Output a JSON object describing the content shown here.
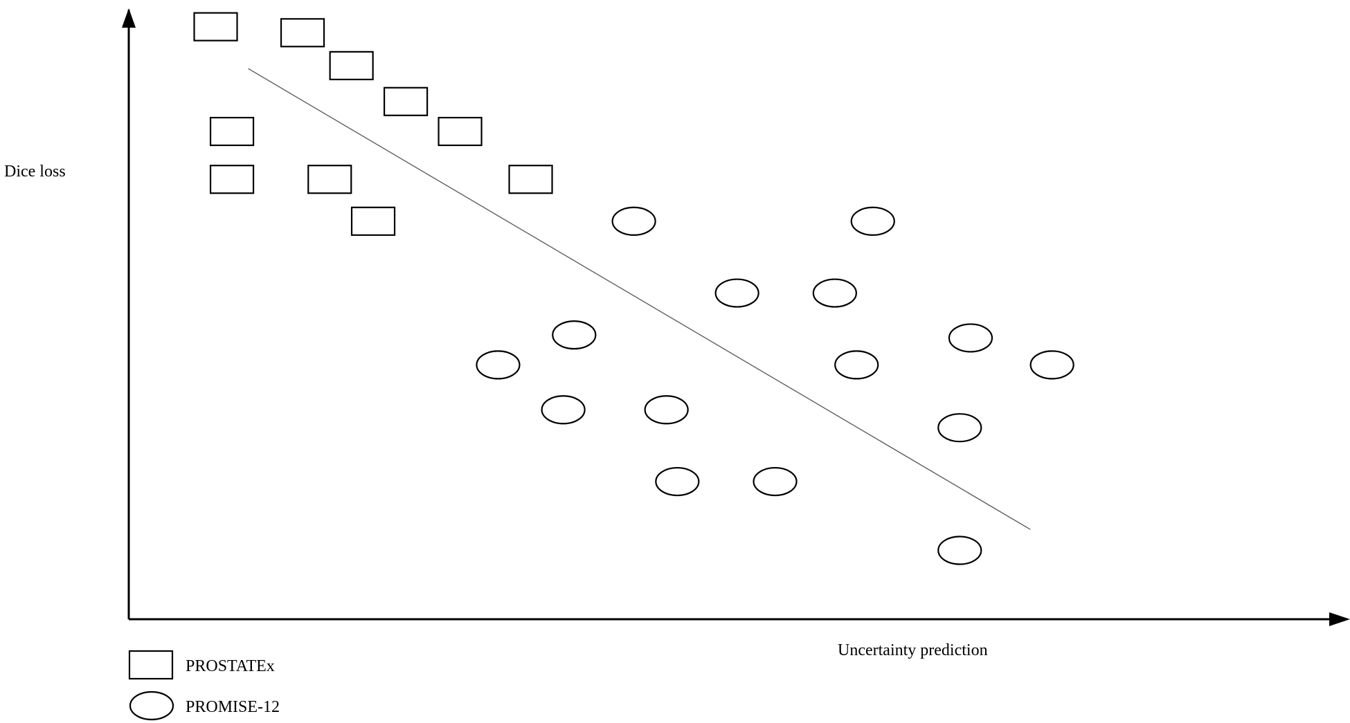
{
  "chart_data": {
    "type": "scatter",
    "title": "",
    "xlabel": "Uncertainty prediction",
    "ylabel": "Dice loss",
    "xlim": [
      0,
      100
    ],
    "ylim": [
      0,
      100
    ],
    "grid": false,
    "legend_position": "bottom-left",
    "series": [
      {
        "name": "PROSTATEx",
        "marker": "square",
        "points": [
          [
            8,
            99
          ],
          [
            16,
            98
          ],
          [
            20.5,
            92.5
          ],
          [
            25.5,
            86.5
          ],
          [
            30.5,
            81.5
          ],
          [
            9.5,
            81.5
          ],
          [
            9.5,
            73.5
          ],
          [
            18.5,
            73.5
          ],
          [
            37,
            73.5
          ],
          [
            22.5,
            66.5
          ]
        ]
      },
      {
        "name": "PROMISE-12",
        "marker": "circle",
        "points": [
          [
            46.5,
            66.5
          ],
          [
            68.5,
            66.5
          ],
          [
            56,
            54.5
          ],
          [
            65,
            54.5
          ],
          [
            41,
            47.5
          ],
          [
            77.5,
            47
          ],
          [
            34,
            42.5
          ],
          [
            67,
            42.5
          ],
          [
            85,
            42.5
          ],
          [
            40,
            35
          ],
          [
            49.5,
            35
          ],
          [
            76.5,
            32
          ],
          [
            50.5,
            23
          ],
          [
            59.5,
            23
          ],
          [
            76.5,
            11.5
          ]
        ]
      }
    ],
    "trend_line": [
      [
        11,
        92
      ],
      [
        83,
        15
      ]
    ]
  },
  "colors": {
    "axis": "#000000",
    "trend": "#555555",
    "marker_fill": "#ffffff"
  }
}
